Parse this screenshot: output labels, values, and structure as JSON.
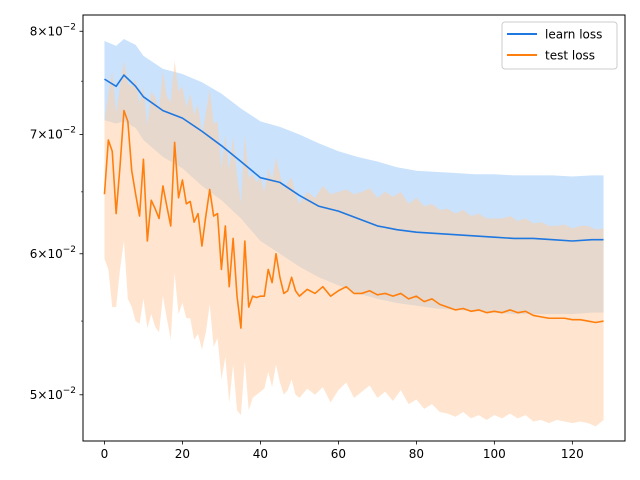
{
  "chart_data": {
    "type": "line",
    "title": "",
    "xlabel": "",
    "ylabel": "",
    "xlim": [
      -5.5,
      133.5
    ],
    "ylim": [
      0.0471,
      0.0817
    ],
    "y_scale": "log",
    "grid": false,
    "legend_position": "top-right",
    "x_ticks": [
      0,
      20,
      40,
      60,
      80,
      100,
      120
    ],
    "x_tick_labels": [
      "0",
      "20",
      "40",
      "60",
      "80",
      "100",
      "120"
    ],
    "y_ticks": [
      0.05,
      0.06,
      0.07,
      0.08
    ],
    "y_tick_labels": [
      {
        "mantissa": "5",
        "base": "10",
        "exponent": "−2"
      },
      {
        "mantissa": "6",
        "base": "10",
        "exponent": "−2"
      },
      {
        "mantissa": "7",
        "base": "10",
        "exponent": "−2"
      },
      {
        "mantissa": "8",
        "base": "10",
        "exponent": "−2"
      }
    ],
    "series": [
      {
        "name": "learn loss",
        "color": "#1f77e0",
        "band_color": "#9fcbf7",
        "x": [
          0,
          3,
          5,
          8,
          10,
          15,
          20,
          25,
          30,
          35,
          40,
          45,
          50,
          55,
          60,
          65,
          70,
          75,
          80,
          85,
          90,
          95,
          100,
          105,
          110,
          115,
          120,
          125,
          128
        ],
        "y": [
          0.0752,
          0.0745,
          0.0756,
          0.0745,
          0.0735,
          0.0722,
          0.0715,
          0.0703,
          0.069,
          0.0676,
          0.0662,
          0.0658,
          0.0647,
          0.0638,
          0.0634,
          0.0628,
          0.0622,
          0.0619,
          0.0617,
          0.0616,
          0.0615,
          0.0614,
          0.0613,
          0.0612,
          0.0612,
          0.0611,
          0.061,
          0.0611,
          0.0611
        ],
        "lower": [
          0.0713,
          0.071,
          0.0712,
          0.0706,
          0.0695,
          0.068,
          0.067,
          0.0655,
          0.0643,
          0.0628,
          0.061,
          0.06,
          0.059,
          0.0582,
          0.0576,
          0.057,
          0.0566,
          0.0563,
          0.0561,
          0.0559,
          0.0558,
          0.0557,
          0.0556,
          0.0555,
          0.0555,
          0.0555,
          0.0555,
          0.0556,
          0.0556
        ],
        "upper": [
          0.079,
          0.0785,
          0.0792,
          0.0786,
          0.0775,
          0.0762,
          0.0757,
          0.0749,
          0.0738,
          0.0724,
          0.0712,
          0.0707,
          0.07,
          0.0692,
          0.0685,
          0.068,
          0.0676,
          0.0671,
          0.0668,
          0.0667,
          0.0666,
          0.0665,
          0.0665,
          0.0664,
          0.0664,
          0.0664,
          0.0663,
          0.0664,
          0.0664
        ]
      },
      {
        "name": "test loss",
        "color": "#ff7f0e",
        "band_color": "#ffd0a8",
        "x": [
          0,
          1,
          2,
          3,
          4,
          5,
          6,
          7,
          8,
          9,
          10,
          11,
          12,
          13,
          14,
          15,
          16,
          17,
          18,
          19,
          20,
          21,
          22,
          23,
          24,
          25,
          26,
          27,
          28,
          29,
          30,
          31,
          32,
          33,
          34,
          35,
          36,
          37,
          38,
          39,
          40,
          41,
          42,
          43,
          44,
          45,
          46,
          47,
          48,
          49,
          50,
          52,
          54,
          56,
          58,
          60,
          62,
          64,
          66,
          68,
          70,
          72,
          74,
          76,
          78,
          80,
          82,
          84,
          86,
          88,
          90,
          92,
          94,
          96,
          98,
          100,
          102,
          104,
          106,
          108,
          110,
          112,
          114,
          116,
          118,
          120,
          122,
          124,
          126,
          128
        ],
        "y": [
          0.0648,
          0.0695,
          0.0685,
          0.0632,
          0.0672,
          0.0722,
          0.0712,
          0.0668,
          0.0648,
          0.063,
          0.0678,
          0.061,
          0.0643,
          0.0636,
          0.0628,
          0.0655,
          0.0638,
          0.0622,
          0.0693,
          0.0645,
          0.066,
          0.064,
          0.0642,
          0.0625,
          0.0632,
          0.0606,
          0.063,
          0.0652,
          0.063,
          0.0632,
          0.0588,
          0.0622,
          0.0575,
          0.0612,
          0.0568,
          0.0545,
          0.061,
          0.056,
          0.0568,
          0.0567,
          0.0568,
          0.0568,
          0.0588,
          0.0578,
          0.06,
          0.0582,
          0.057,
          0.0572,
          0.0582,
          0.0572,
          0.0568,
          0.0573,
          0.057,
          0.0575,
          0.0568,
          0.0572,
          0.0575,
          0.057,
          0.057,
          0.0572,
          0.0569,
          0.057,
          0.0568,
          0.057,
          0.0566,
          0.0568,
          0.0564,
          0.0566,
          0.0562,
          0.056,
          0.0558,
          0.0559,
          0.0557,
          0.0558,
          0.0556,
          0.0557,
          0.0556,
          0.0558,
          0.0556,
          0.0557,
          0.0554,
          0.0553,
          0.0552,
          0.0552,
          0.0552,
          0.0551,
          0.0551,
          0.055,
          0.0549,
          0.055
        ],
        "lower": [
          0.0596,
          0.0588,
          0.056,
          0.056,
          0.0588,
          0.061,
          0.0566,
          0.056,
          0.055,
          0.0548,
          0.0566,
          0.0545,
          0.0555,
          0.0546,
          0.0542,
          0.0568,
          0.0552,
          0.0537,
          0.0585,
          0.0555,
          0.0563,
          0.0552,
          0.0552,
          0.0537,
          0.0541,
          0.053,
          0.0542,
          0.0562,
          0.0532,
          0.0538,
          0.051,
          0.0525,
          0.0495,
          0.052,
          0.049,
          0.0487,
          0.0522,
          0.049,
          0.0498,
          0.05,
          0.0502,
          0.0504,
          0.0515,
          0.0505,
          0.052,
          0.0508,
          0.05,
          0.0503,
          0.051,
          0.05,
          0.0498,
          0.0504,
          0.05,
          0.0505,
          0.0495,
          0.0503,
          0.0508,
          0.0498,
          0.0502,
          0.0506,
          0.0498,
          0.0502,
          0.0496,
          0.0503,
          0.0494,
          0.0497,
          0.0491,
          0.0494,
          0.0489,
          0.0488,
          0.0486,
          0.0489,
          0.0485,
          0.0487,
          0.0484,
          0.0487,
          0.0485,
          0.0488,
          0.0485,
          0.0487,
          0.0483,
          0.0484,
          0.0482,
          0.0484,
          0.0483,
          0.0482,
          0.0483,
          0.0482,
          0.048,
          0.0484
        ],
        "upper": [
          0.0712,
          0.0738,
          0.076,
          0.072,
          0.0745,
          0.077,
          0.0748,
          0.0745,
          0.0752,
          0.0728,
          0.0745,
          0.0708,
          0.074,
          0.0735,
          0.0722,
          0.076,
          0.0735,
          0.073,
          0.077,
          0.074,
          0.0745,
          0.0725,
          0.0738,
          0.0718,
          0.0728,
          0.07,
          0.072,
          0.0742,
          0.071,
          0.0712,
          0.067,
          0.07,
          0.0668,
          0.0698,
          0.0664,
          0.064,
          0.07,
          0.0662,
          0.0665,
          0.0658,
          0.0662,
          0.065,
          0.067,
          0.066,
          0.068,
          0.0665,
          0.0652,
          0.0658,
          0.0662,
          0.0648,
          0.064,
          0.065,
          0.0645,
          0.0655,
          0.0648,
          0.065,
          0.0652,
          0.0648,
          0.065,
          0.0653,
          0.0645,
          0.065,
          0.0646,
          0.065,
          0.064,
          0.0645,
          0.0638,
          0.064,
          0.0635,
          0.0636,
          0.0632,
          0.0635,
          0.063,
          0.0632,
          0.0628,
          0.0628,
          0.0628,
          0.063,
          0.0626,
          0.0628,
          0.0624,
          0.0625,
          0.0622,
          0.0622,
          0.0623,
          0.062,
          0.0622,
          0.0622,
          0.0619,
          0.062
        ]
      }
    ]
  }
}
